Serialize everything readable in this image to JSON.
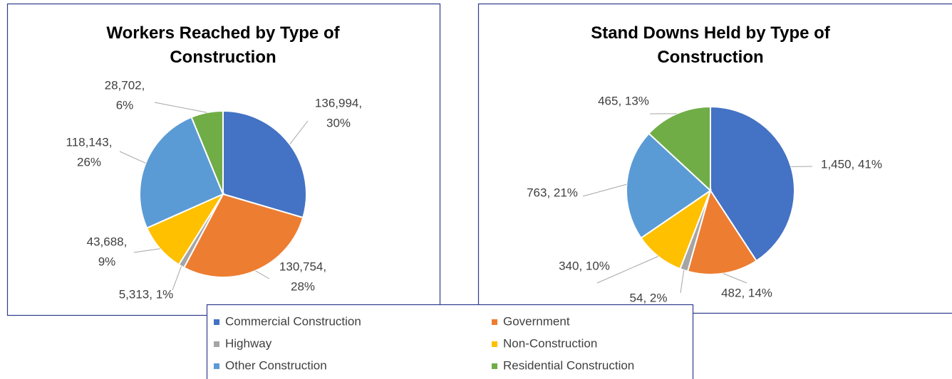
{
  "chart_data": [
    {
      "type": "pie",
      "title": "Workers Reached by Type of Construction",
      "values": [
        136994,
        130754,
        5313,
        43688,
        118143,
        28702
      ],
      "value_labels": [
        [
          "136,994,",
          "30%"
        ],
        [
          "130,754,",
          "28%"
        ],
        [
          "5,313, 1%"
        ],
        [
          "43,688,",
          "9%"
        ],
        [
          "118,143,",
          "26%"
        ],
        [
          "28,702,",
          "6%"
        ]
      ]
    },
    {
      "type": "pie",
      "title": "Stand Downs Held by Type of Construction",
      "values": [
        1450,
        482,
        54,
        340,
        763,
        465
      ],
      "value_labels": [
        [
          "1,450, 41%"
        ],
        [
          "482, 14%"
        ],
        [
          "54, 2%"
        ],
        [
          "340, 10%"
        ],
        [
          "763, 21%"
        ],
        [
          "465, 13%"
        ]
      ]
    }
  ],
  "legend": {
    "categories": [
      "Commercial Construction",
      "Government",
      "Highway",
      "Non-Construction",
      "Other Construction",
      "Residential Construction"
    ],
    "colors": [
      "#4472c4",
      "#ed7d31",
      "#a5a5a5",
      "#ffc000",
      "#5b9bd5",
      "#70ad47"
    ]
  }
}
